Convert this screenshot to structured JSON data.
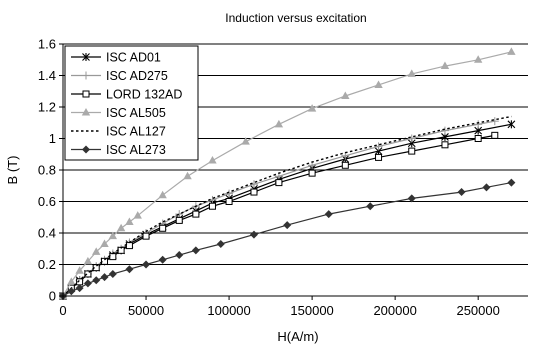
{
  "chart_data": {
    "type": "line",
    "title": "Induction versus excitation",
    "xlabel": "H(A/m)",
    "ylabel": "B (T)",
    "xlim": [
      0,
      280000
    ],
    "ylim": [
      0,
      1.6
    ],
    "xticks": [
      0,
      50000,
      100000,
      150000,
      200000,
      250000
    ],
    "xtick_labels": [
      "0",
      "50000",
      "100000",
      "150000",
      "200000",
      "250000"
    ],
    "yticks": [
      0,
      0.2,
      0.4,
      0.6,
      0.8,
      1.0,
      1.2,
      1.4,
      1.6
    ],
    "ytick_labels": [
      "0",
      "0.2",
      "0.4",
      "0.6",
      "0.8",
      "1",
      "1.2",
      "1.4",
      "1.6"
    ],
    "grid": "horizontal",
    "legend_position": "top-left",
    "series": [
      {
        "name": "ISC AD01",
        "color": "#000000",
        "marker": "star",
        "dash": "solid",
        "x": [
          0,
          5000,
          10000,
          15000,
          20000,
          25000,
          30000,
          35000,
          40000,
          50000,
          60000,
          70000,
          80000,
          90000,
          100000,
          115000,
          130000,
          150000,
          170000,
          190000,
          210000,
          230000,
          250000,
          270000
        ],
        "y": [
          0,
          0.05,
          0.1,
          0.14,
          0.18,
          0.22,
          0.26,
          0.29,
          0.33,
          0.39,
          0.44,
          0.49,
          0.54,
          0.59,
          0.62,
          0.68,
          0.74,
          0.81,
          0.87,
          0.92,
          0.97,
          1.01,
          1.05,
          1.09
        ]
      },
      {
        "name": "ISC AD275",
        "color": "#999999",
        "marker": "plus",
        "dash": "solid",
        "x": [
          0,
          5000,
          10000,
          15000,
          20000,
          25000,
          30000,
          35000,
          40000,
          50000,
          60000,
          70000,
          80000,
          90000,
          100000,
          115000,
          130000,
          150000,
          170000,
          190000,
          210000,
          230000,
          250000,
          260000
        ],
        "y": [
          0,
          0.05,
          0.1,
          0.14,
          0.19,
          0.23,
          0.27,
          0.3,
          0.34,
          0.4,
          0.46,
          0.52,
          0.57,
          0.61,
          0.65,
          0.71,
          0.76,
          0.83,
          0.89,
          0.95,
          1.0,
          1.05,
          1.09,
          1.11
        ]
      },
      {
        "name": "LORD 132AD",
        "color": "#000000",
        "marker": "square",
        "dash": "solid",
        "x": [
          0,
          5000,
          10000,
          15000,
          20000,
          25000,
          30000,
          35000,
          40000,
          50000,
          60000,
          70000,
          80000,
          90000,
          100000,
          115000,
          130000,
          150000,
          170000,
          190000,
          210000,
          230000,
          250000,
          260000
        ],
        "y": [
          0,
          0.05,
          0.09,
          0.14,
          0.18,
          0.22,
          0.25,
          0.29,
          0.32,
          0.38,
          0.43,
          0.48,
          0.52,
          0.57,
          0.6,
          0.66,
          0.72,
          0.78,
          0.83,
          0.88,
          0.92,
          0.96,
          1.0,
          1.02
        ]
      },
      {
        "name": "ISC AL505",
        "color": "#aaaaaa",
        "marker": "triangle",
        "dash": "solid",
        "x": [
          0,
          5000,
          10000,
          15000,
          20000,
          25000,
          30000,
          35000,
          40000,
          45000,
          60000,
          75000,
          90000,
          110000,
          130000,
          150000,
          170000,
          190000,
          210000,
          230000,
          250000,
          270000
        ],
        "y": [
          0,
          0.09,
          0.16,
          0.22,
          0.28,
          0.33,
          0.38,
          0.43,
          0.47,
          0.51,
          0.64,
          0.76,
          0.86,
          0.98,
          1.09,
          1.19,
          1.27,
          1.34,
          1.41,
          1.46,
          1.5,
          1.55
        ]
      },
      {
        "name": "ISC AL127",
        "color": "#000000",
        "marker": "none",
        "dash": "dotted",
        "x": [
          0,
          10000,
          20000,
          30000,
          40000,
          50000,
          60000,
          70000,
          80000,
          90000,
          100000,
          115000,
          130000,
          150000,
          170000,
          190000,
          210000,
          230000,
          250000,
          270000
        ],
        "y": [
          0,
          0.1,
          0.19,
          0.27,
          0.34,
          0.41,
          0.47,
          0.52,
          0.57,
          0.62,
          0.66,
          0.72,
          0.78,
          0.85,
          0.91,
          0.96,
          1.01,
          1.06,
          1.1,
          1.14
        ]
      },
      {
        "name": "ISC AL273",
        "color": "#333333",
        "marker": "diamond",
        "dash": "solid",
        "x": [
          0,
          5000,
          10000,
          15000,
          20000,
          25000,
          30000,
          40000,
          50000,
          60000,
          70000,
          80000,
          95000,
          115000,
          135000,
          160000,
          185000,
          210000,
          240000,
          255000,
          270000
        ],
        "y": [
          0,
          0.03,
          0.05,
          0.08,
          0.1,
          0.12,
          0.14,
          0.17,
          0.2,
          0.23,
          0.26,
          0.29,
          0.33,
          0.39,
          0.45,
          0.52,
          0.57,
          0.62,
          0.66,
          0.69,
          0.72
        ]
      }
    ]
  }
}
